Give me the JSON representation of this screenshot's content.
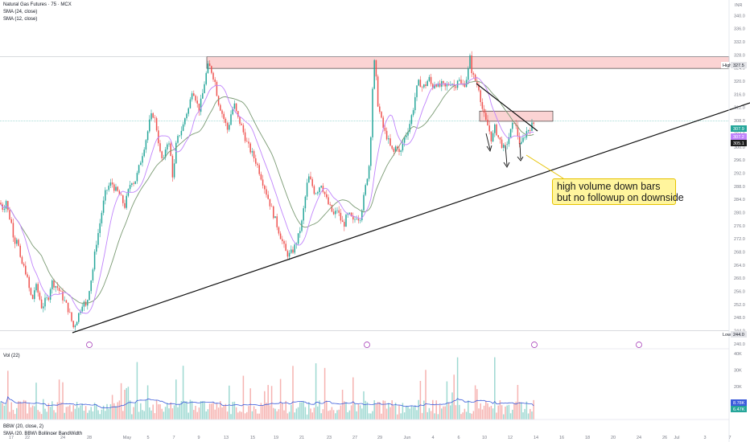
{
  "legend": {
    "title": "Natural Gas Futures · 75 · MCX",
    "sma1": "SMA (24, close)",
    "sma2": "SMA (12, close)"
  },
  "volume_panel": {
    "label": "Vol (22)",
    "value1": "8.78K",
    "value2": "6.47K"
  },
  "bbw_panel": {
    "label": "BBW (20, close, 2)",
    "sublabel": "SMA (20, BBW) Bollinger BandWidth"
  },
  "annotation": {
    "line1": "high volume down bars",
    "line2": "but no followup on downside"
  },
  "currency": "INR",
  "high_tag": {
    "label": "High",
    "value": "327.5"
  },
  "low_tag": {
    "label": "Low",
    "value": "244.0"
  },
  "price_tags": {
    "last": "307.9",
    "sma_a": "305.1",
    "sma_b": "307.2"
  },
  "colors": {
    "up": "#26a69a",
    "down": "#ef5350",
    "resistance_fill": "#fbd3d3",
    "sma24": "#7a9a73",
    "sma12": "#c084fc"
  },
  "chart_data": {
    "type": "candlestick",
    "title": "Natural Gas Futures · 75 · MCX",
    "price_ticks": [
      340.0,
      336.0,
      332.0,
      328.0,
      324.0,
      320.0,
      316.0,
      312.0,
      308.0,
      304.0,
      300.0,
      296.0,
      292.0,
      288.0,
      284.0,
      280.0,
      276.0,
      272.0,
      268.0,
      264.0,
      260.0,
      256.0,
      252.0,
      248.0,
      244.0,
      240.0
    ],
    "price_range": [
      238.5,
      344.0
    ],
    "x_ticks": [
      "17",
      "22",
      "24",
      "28",
      "May",
      "5",
      "7",
      "9",
      "13",
      "15",
      "19",
      "21",
      "23",
      "27",
      "29",
      "Jun",
      "4",
      "6",
      "10",
      "12",
      "14",
      "16",
      "18",
      "20",
      "24",
      "26",
      "Jul",
      "3",
      "7"
    ],
    "price_path": [
      [
        0,
        283
      ],
      [
        4,
        281
      ],
      [
        8,
        284
      ],
      [
        10,
        280
      ],
      [
        14,
        277
      ],
      [
        18,
        271
      ],
      [
        22,
        273
      ],
      [
        24,
        266
      ],
      [
        28,
        264
      ],
      [
        32,
        262
      ],
      [
        36,
        257
      ],
      [
        40,
        253
      ],
      [
        44,
        258
      ],
      [
        48,
        255
      ],
      [
        52,
        251
      ],
      [
        56,
        253
      ],
      [
        60,
        254
      ],
      [
        64,
        259
      ],
      [
        68,
        258
      ],
      [
        72,
        257
      ],
      [
        76,
        255
      ],
      [
        80,
        253
      ],
      [
        84,
        251
      ],
      [
        88,
        248
      ],
      [
        91,
        245
      ],
      [
        95,
        247
      ],
      [
        99,
        250
      ],
      [
        103,
        253
      ],
      [
        107,
        251
      ],
      [
        111,
        257
      ],
      [
        115,
        262
      ],
      [
        119,
        270
      ],
      [
        123,
        275
      ],
      [
        127,
        281
      ],
      [
        131,
        286
      ],
      [
        135,
        288
      ],
      [
        139,
        289
      ],
      [
        143,
        287
      ],
      [
        147,
        286
      ],
      [
        151,
        284
      ],
      [
        155,
        282
      ],
      [
        159,
        286
      ],
      [
        163,
        290
      ],
      [
        167,
        289
      ],
      [
        171,
        292
      ],
      [
        175,
        296
      ],
      [
        179,
        300
      ],
      [
        183,
        304
      ],
      [
        187,
        309
      ],
      [
        191,
        310
      ],
      [
        195,
        305
      ],
      [
        199,
        298
      ],
      [
        203,
        295
      ],
      [
        207,
        302
      ],
      [
        211,
        300
      ],
      [
        215,
        290
      ],
      [
        219,
        301
      ],
      [
        223,
        304
      ],
      [
        227,
        306
      ],
      [
        231,
        310
      ],
      [
        235,
        312
      ],
      [
        239,
        318
      ],
      [
        243,
        315
      ],
      [
        247,
        311
      ],
      [
        251,
        315
      ],
      [
        255,
        321
      ],
      [
        259,
        325
      ],
      [
        263,
        323
      ],
      [
        267,
        320
      ],
      [
        271,
        314
      ],
      [
        275,
        311
      ],
      [
        279,
        308
      ],
      [
        283,
        305
      ],
      [
        287,
        310
      ],
      [
        291,
        313
      ],
      [
        295,
        309
      ],
      [
        299,
        307
      ],
      [
        303,
        304
      ],
      [
        307,
        301
      ],
      [
        311,
        299
      ],
      [
        315,
        297
      ],
      [
        319,
        295
      ],
      [
        323,
        292
      ],
      [
        327,
        289
      ],
      [
        331,
        286
      ],
      [
        335,
        283
      ],
      [
        339,
        280
      ],
      [
        343,
        277
      ],
      [
        347,
        274
      ],
      [
        351,
        271
      ],
      [
        355,
        268
      ],
      [
        359,
        267
      ],
      [
        363,
        268
      ],
      [
        367,
        270
      ],
      [
        371,
        273
      ],
      [
        375,
        277
      ],
      [
        379,
        284
      ],
      [
        383,
        291
      ],
      [
        387,
        289
      ],
      [
        391,
        286
      ],
      [
        395,
        287
      ],
      [
        399,
        289
      ],
      [
        403,
        286
      ],
      [
        407,
        283
      ],
      [
        411,
        281
      ],
      [
        415,
        279
      ],
      [
        419,
        281
      ],
      [
        423,
        278
      ],
      [
        427,
        276
      ],
      [
        431,
        279
      ],
      [
        435,
        279
      ],
      [
        439,
        277
      ],
      [
        443,
        279
      ],
      [
        447,
        278
      ],
      [
        451,
        283
      ],
      [
        455,
        289
      ],
      [
        459,
        295
      ],
      [
        461,
        305
      ],
      [
        463,
        318
      ],
      [
        465,
        326
      ],
      [
        467,
        322
      ],
      [
        469,
        314
      ],
      [
        473,
        309
      ],
      [
        477,
        305
      ],
      [
        481,
        303
      ],
      [
        485,
        300
      ],
      [
        489,
        298
      ],
      [
        493,
        301
      ],
      [
        497,
        297
      ],
      [
        501,
        302
      ],
      [
        505,
        304
      ],
      [
        509,
        307
      ],
      [
        513,
        311
      ],
      [
        517,
        317
      ],
      [
        521,
        320
      ],
      [
        525,
        318
      ],
      [
        529,
        319
      ],
      [
        533,
        321
      ],
      [
        537,
        318
      ],
      [
        541,
        320
      ],
      [
        545,
        318
      ],
      [
        549,
        319
      ],
      [
        553,
        318
      ],
      [
        557,
        319
      ],
      [
        561,
        320
      ],
      [
        565,
        318
      ],
      [
        569,
        321
      ],
      [
        573,
        319
      ],
      [
        577,
        319
      ],
      [
        581,
        322
      ],
      [
        584,
        327
      ],
      [
        587,
        322
      ],
      [
        591,
        320
      ],
      [
        595,
        318
      ],
      [
        599,
        312
      ],
      [
        603,
        308
      ],
      [
        607,
        306
      ],
      [
        611,
        302
      ],
      [
        615,
        306
      ],
      [
        619,
        303
      ],
      [
        623,
        301
      ],
      [
        627,
        299
      ],
      [
        631,
        302
      ],
      [
        635,
        305
      ],
      [
        639,
        308
      ],
      [
        643,
        304
      ],
      [
        647,
        300
      ],
      [
        651,
        303
      ],
      [
        655,
        305
      ],
      [
        659,
        306
      ],
      [
        663,
        307
      ],
      [
        665,
        307.9
      ]
    ],
    "volume_range": [
      0,
      40000
    ],
    "volume_ticks": [
      "40K",
      "30K",
      "20K"
    ],
    "levels": {
      "high": 327.5,
      "low": 244.0
    },
    "resistance_zone": [
      323.9,
      327.5
    ],
    "small_resistance_zone": [
      307.8,
      310.9
    ],
    "annotation": "high volume down bars but no followup on downside"
  }
}
